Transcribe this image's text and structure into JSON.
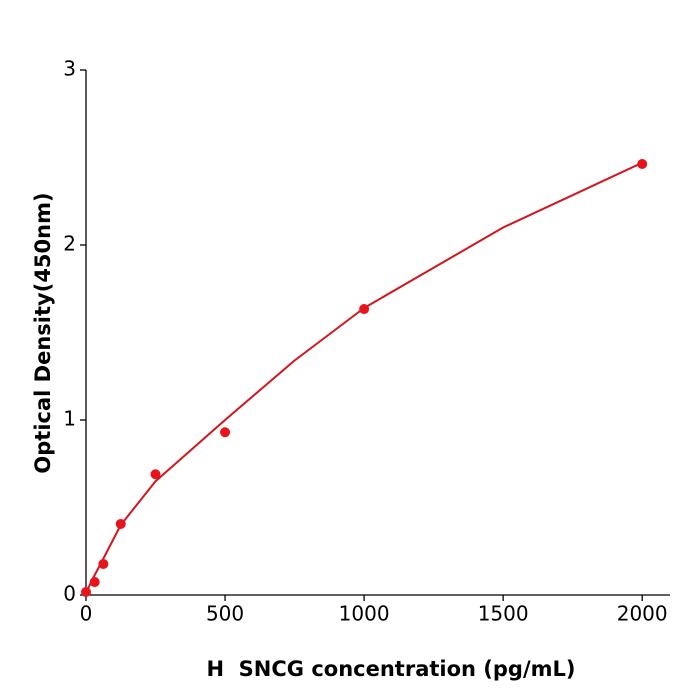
{
  "chart_data": {
    "type": "scatter",
    "x_label": "H  SNCG concentration (pg/mL)",
    "y_label": "Optical Density(450nm)",
    "x": [
      0,
      31.25,
      62.5,
      125,
      250,
      500,
      1000,
      2000
    ],
    "values": [
      0.017,
      0.074,
      0.177,
      0.406,
      0.69,
      0.93,
      1.634,
      2.463
    ],
    "color": "#e8141c",
    "fit_x": [
      0,
      20,
      50,
      125,
      250,
      500,
      750,
      1000,
      1500,
      2000
    ],
    "fit_values": [
      0.01,
      0.08,
      0.17,
      0.4,
      0.65,
      1.0,
      1.34,
      1.64,
      2.1,
      2.47
    ],
    "fit_color": "#d2161e",
    "xlim": [
      0,
      2100
    ],
    "ylim": [
      0,
      3
    ],
    "xticks": [
      0,
      500,
      1000,
      1500,
      2000
    ],
    "yticks": [
      0,
      1,
      2,
      3
    ]
  }
}
